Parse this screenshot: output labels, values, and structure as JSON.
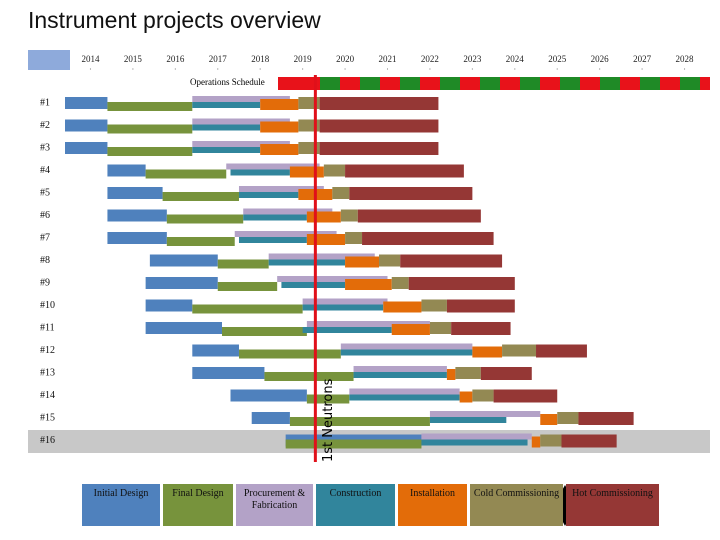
{
  "chart_data": {
    "type": "gantt",
    "title": "Instrument projects overview",
    "xlim": [
      2013.4,
      2028.6
    ],
    "xticks": [
      2014,
      2015,
      2016,
      2017,
      2018,
      2019,
      2020,
      2021,
      2022,
      2023,
      2024,
      2025,
      2026,
      2027,
      2028
    ],
    "operations_label": "Operations Schedule",
    "milestone": {
      "label": "1st Neutrons",
      "year": 2019.3,
      "color": "#e0101a"
    },
    "categories": [
      "#1",
      "#2",
      "#3",
      "#4",
      "#5",
      "#6",
      "#7",
      "#8",
      "#9",
      "#10",
      "#11",
      "#12",
      "#13",
      "#14",
      "#15",
      "#16"
    ],
    "series": [
      {
        "name": "Initial Design",
        "color": "#4f81bd",
        "values": [
          [
            2013.4,
            2014.4
          ],
          [
            2013.4,
            2014.4
          ],
          [
            2013.4,
            2014.4
          ],
          [
            2014.4,
            2015.3
          ],
          [
            2014.4,
            2015.7
          ],
          [
            2014.4,
            2015.8
          ],
          [
            2014.4,
            2015.8
          ],
          [
            2015.4,
            2017.0
          ],
          [
            2015.3,
            2017.0
          ],
          [
            2015.3,
            2016.4
          ],
          [
            2015.3,
            2017.1
          ],
          [
            2016.4,
            2017.5
          ],
          [
            2016.4,
            2018.1
          ],
          [
            2017.3,
            2019.1
          ],
          [
            2017.8,
            2018.7
          ],
          [
            2018.6,
            2021.8
          ]
        ]
      },
      {
        "name": "Final Design",
        "color": "#77933c",
        "values": [
          [
            2014.4,
            2016.4
          ],
          [
            2014.4,
            2016.4
          ],
          [
            2014.4,
            2016.4
          ],
          [
            2015.3,
            2017.2
          ],
          [
            2015.7,
            2017.5
          ],
          [
            2015.8,
            2017.6
          ],
          [
            2015.8,
            2017.4
          ],
          [
            2017.0,
            2018.2
          ],
          [
            2017.0,
            2018.4
          ],
          [
            2016.4,
            2019.0
          ],
          [
            2017.1,
            2019.1
          ],
          [
            2017.5,
            2019.9
          ],
          [
            2018.1,
            2020.2
          ],
          [
            2019.1,
            2020.1
          ],
          [
            2018.7,
            2022.0
          ],
          [
            2018.6,
            2021.8
          ]
        ]
      },
      {
        "name": "Procurement & Fabrication",
        "color": "#b3a2c7",
        "values": [
          [
            2016.4,
            2018.7
          ],
          [
            2016.4,
            2018.7
          ],
          [
            2016.4,
            2018.7
          ],
          [
            2017.2,
            2019.4
          ],
          [
            2017.5,
            2019.5
          ],
          [
            2017.6,
            2019.7
          ],
          [
            2017.4,
            2019.8
          ],
          [
            2018.2,
            2020.7
          ],
          [
            2018.4,
            2021.0
          ],
          [
            2019.0,
            2021.0
          ],
          [
            2019.1,
            2022.0
          ],
          [
            2019.9,
            2023.0
          ],
          [
            2020.2,
            2022.4
          ],
          [
            2020.1,
            2022.7
          ],
          [
            2022.0,
            2024.6
          ],
          [
            2021.8,
            2024.4
          ]
        ]
      },
      {
        "name": "Construction",
        "color": "#31859c",
        "values": [
          [
            2016.4,
            2018.0
          ],
          [
            2016.4,
            2018.0
          ],
          [
            2016.4,
            2018.0
          ],
          [
            2017.3,
            2018.7
          ],
          [
            2017.5,
            2018.9
          ],
          [
            2017.6,
            2019.1
          ],
          [
            2017.5,
            2019.1
          ],
          [
            2018.2,
            2020.0
          ],
          [
            2018.5,
            2020.0
          ],
          [
            2019.0,
            2020.9
          ],
          [
            2019.0,
            2021.1
          ],
          [
            2019.9,
            2023.0
          ],
          [
            2020.2,
            2022.4
          ],
          [
            2020.1,
            2022.7
          ],
          [
            2022.0,
            2023.8
          ],
          [
            2021.8,
            2024.3
          ]
        ]
      },
      {
        "name": "Installation",
        "color": "#e36c09",
        "values": [
          [
            2018.0,
            2018.9
          ],
          [
            2018.0,
            2018.9
          ],
          [
            2018.0,
            2018.9
          ],
          [
            2018.7,
            2019.5
          ],
          [
            2018.9,
            2019.7
          ],
          [
            2019.1,
            2019.9
          ],
          [
            2019.1,
            2020.0
          ],
          [
            2020.0,
            2020.8
          ],
          [
            2020.0,
            2021.1
          ],
          [
            2020.9,
            2021.8
          ],
          [
            2021.1,
            2022.0
          ],
          [
            2023.0,
            2023.7
          ],
          [
            2022.4,
            2022.6
          ],
          [
            2022.7,
            2023.0
          ],
          [
            2024.6,
            2025.0
          ],
          [
            2024.4,
            2024.6
          ]
        ]
      },
      {
        "name": "Cold Commissioning",
        "color": "#938953",
        "values": [
          [
            2018.9,
            2019.4
          ],
          [
            2018.9,
            2019.4
          ],
          [
            2018.9,
            2019.4
          ],
          [
            2019.5,
            2020.0
          ],
          [
            2019.7,
            2020.1
          ],
          [
            2019.9,
            2020.3
          ],
          [
            2020.0,
            2020.4
          ],
          [
            2020.8,
            2021.3
          ],
          [
            2021.1,
            2021.5
          ],
          [
            2021.8,
            2022.4
          ],
          [
            2022.0,
            2022.5
          ],
          [
            2023.7,
            2024.5
          ],
          [
            2022.6,
            2023.2
          ],
          [
            2023.0,
            2023.5
          ],
          [
            2025.0,
            2025.5
          ],
          [
            2024.6,
            2025.1
          ]
        ]
      },
      {
        "name": "Hot Commissioning",
        "color": "#953735",
        "values": [
          [
            2019.4,
            2022.2
          ],
          [
            2019.4,
            2022.2
          ],
          [
            2019.4,
            2022.2
          ],
          [
            2020.0,
            2022.8
          ],
          [
            2020.1,
            2023.0
          ],
          [
            2020.3,
            2023.2
          ],
          [
            2020.4,
            2023.5
          ],
          [
            2021.3,
            2023.7
          ],
          [
            2021.5,
            2024.0
          ],
          [
            2022.4,
            2024.0
          ],
          [
            2022.5,
            2023.9
          ],
          [
            2024.5,
            2025.7
          ],
          [
            2023.2,
            2024.4
          ],
          [
            2023.5,
            2025.0
          ],
          [
            2025.5,
            2026.8
          ],
          [
            2025.1,
            2026.4
          ]
        ]
      }
    ]
  }
}
